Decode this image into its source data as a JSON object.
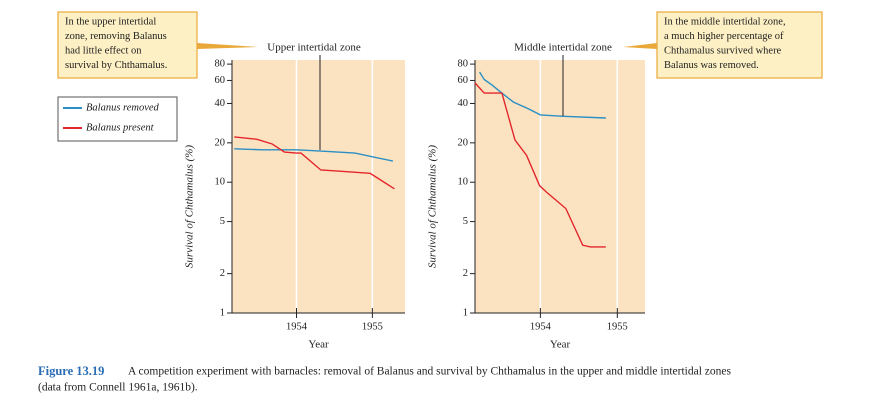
{
  "chart_data": [
    {
      "type": "line",
      "title": "Upper intertidal zone",
      "xlabel": "Year",
      "ylabel": "Survival of Chthamalus (%)",
      "log_y": true,
      "xlim": [
        1953.15,
        1955.43
      ],
      "ylim": [
        1,
        86
      ],
      "xticks": [
        1954,
        1955
      ],
      "yticks": [
        1,
        2,
        5,
        10,
        20,
        40,
        60,
        80
      ],
      "annotation": [
        "In the upper intertidal",
        "zone, removing Balanus",
        "had little effect on",
        "survival by Chthamalus."
      ],
      "series": [
        {
          "name": "Balanus removed",
          "color": "#2a8fc4",
          "x": [
            1953.18,
            1953.55,
            1954.0,
            1954.32,
            1954.77,
            1955.27
          ],
          "values": [
            18,
            17.7,
            17.7,
            17.3,
            16.7,
            14.5
          ]
        },
        {
          "name": "Balanus present",
          "color": "#e3262c",
          "x": [
            1953.18,
            1953.48,
            1953.68,
            1953.84,
            1954.0,
            1954.06,
            1954.32,
            1954.52,
            1954.97,
            1955.29
          ],
          "values": [
            22.2,
            21.3,
            19.6,
            17,
            16.7,
            16.7,
            12.4,
            12.2,
            11.7,
            8.9
          ]
        }
      ]
    },
    {
      "type": "line",
      "title": "Middle intertidal zone",
      "xlabel": "Year",
      "ylabel": "Survival of Chthamalus (%)",
      "log_y": true,
      "xlim": [
        1953.15,
        1955.36
      ],
      "ylim": [
        1,
        86
      ],
      "xticks": [
        1954,
        1955
      ],
      "yticks": [
        1,
        2,
        5,
        10,
        20,
        40,
        60,
        80
      ],
      "annotation": [
        "In the middle intertidal zone,",
        "a much higher percentage of",
        "Chthamalus survived where",
        "Balanus was removed."
      ],
      "series": [
        {
          "name": "Balanus removed",
          "color": "#2a8fc4",
          "x": [
            1953.21,
            1953.27,
            1953.37,
            1953.5,
            1953.65,
            1953.85,
            1954.0,
            1954.27,
            1954.85
          ],
          "values": [
            69.6,
            61,
            55.5,
            48,
            41,
            36.3,
            32.7,
            32,
            31
          ]
        },
        {
          "name": "Balanus present",
          "color": "#e3262c",
          "x": [
            1953.15,
            1953.27,
            1953.5,
            1953.67,
            1953.82,
            1953.99,
            1954.08,
            1954.33,
            1954.55,
            1954.65,
            1954.85
          ],
          "values": [
            57.5,
            48,
            48,
            21,
            16.1,
            9.4,
            8.4,
            6.3,
            3.3,
            3.2,
            3.2
          ]
        }
      ]
    }
  ],
  "caption": {
    "label": "Figure 13.19",
    "lines": [
      "A competition experiment with barnacles: removal of Balanus and survival by Chthamalus in the upper and middle intertidal zones",
      "(data from Connell 1961a, 1961b)."
    ]
  }
}
